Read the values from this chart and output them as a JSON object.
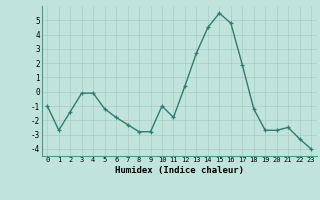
{
  "x": [
    0,
    1,
    2,
    3,
    4,
    5,
    6,
    7,
    8,
    9,
    10,
    11,
    12,
    13,
    14,
    15,
    16,
    17,
    18,
    19,
    20,
    21,
    22,
    23
  ],
  "y": [
    -1.0,
    -2.7,
    -1.4,
    -0.1,
    -0.1,
    -1.2,
    -1.8,
    -2.3,
    -2.8,
    -2.8,
    -1.0,
    -1.8,
    0.4,
    2.7,
    4.5,
    5.5,
    4.8,
    1.9,
    -1.2,
    -2.7,
    -2.7,
    -2.5,
    -3.3,
    -4.0
  ],
  "xlabel": "Humidex (Indice chaleur)",
  "line_color": "#2e7d6e",
  "marker": "+",
  "bg_color": "#c0e4dc",
  "grid_color": "#a8ccc4",
  "ylim": [
    -4.5,
    6.0
  ],
  "xlim": [
    -0.5,
    23.5
  ],
  "yticks": [
    -4,
    -3,
    -2,
    -1,
    0,
    1,
    2,
    3,
    4,
    5
  ],
  "xticks": [
    0,
    1,
    2,
    3,
    4,
    5,
    6,
    7,
    8,
    9,
    10,
    11,
    12,
    13,
    14,
    15,
    16,
    17,
    18,
    19,
    20,
    21,
    22,
    23
  ]
}
